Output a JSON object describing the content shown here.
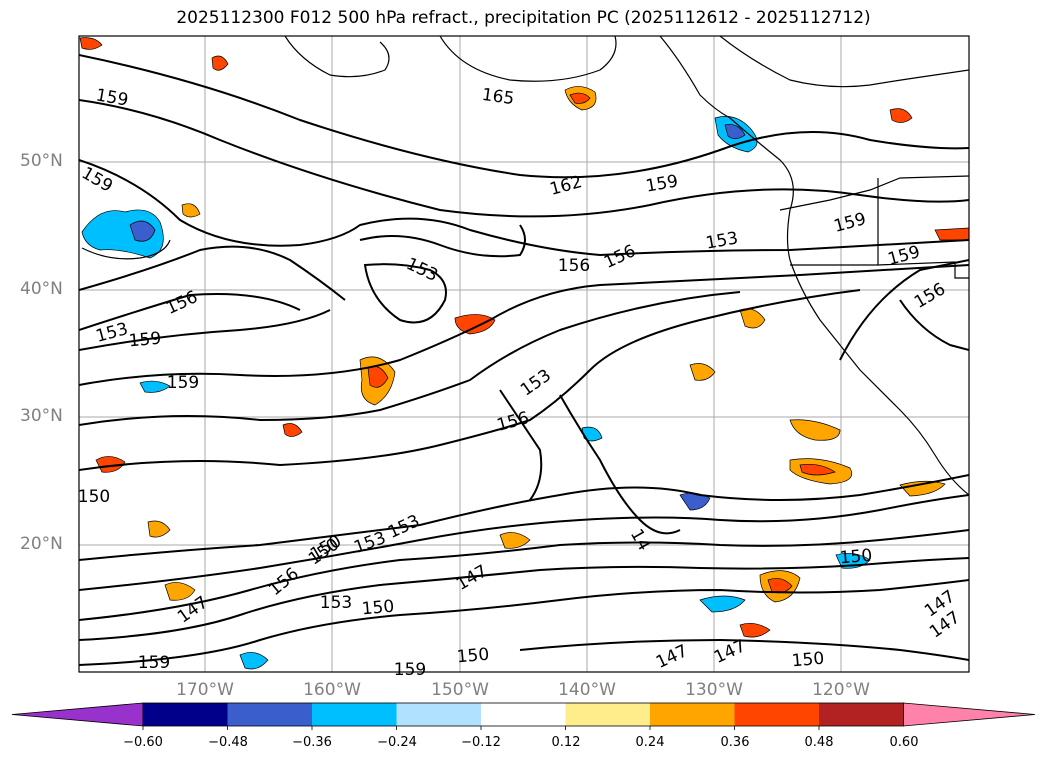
{
  "title": "2025112300 F012 500 hPa refract., precipitation PC (2025112612 - 2025112712)",
  "lat_labels": [
    "50°N",
    "40°N",
    "30°N",
    "20°N"
  ],
  "lon_labels": [
    "170°W",
    "160°W",
    "150°W",
    "140°W",
    "130°W",
    "120°W"
  ],
  "contour_labels": [
    "159",
    "165",
    "159",
    "162",
    "159",
    "156",
    "153",
    "153",
    "159",
    "156",
    "159",
    "156",
    "153",
    "159",
    "159",
    "156",
    "153",
    "156",
    "150",
    "153",
    "150",
    "153",
    "150",
    "156",
    "147",
    "153",
    "150",
    "147",
    "150",
    "147",
    "147",
    "150",
    "159",
    "159",
    "150",
    "147",
    "147",
    "14"
  ],
  "colorbar": {
    "colors": [
      "#9932cc",
      "#00008b",
      "#3a5fcd",
      "#00bfff",
      "#b0e2ff",
      "#ffffff",
      "#ffec8b",
      "#ffa500",
      "#ff4500",
      "#b22222",
      "#ff82ab"
    ],
    "ticks": [
      "−0.60",
      "−0.48",
      "−0.36",
      "−0.24",
      "−0.12",
      "0.12",
      "0.24",
      "0.36",
      "0.48",
      "0.60"
    ]
  }
}
